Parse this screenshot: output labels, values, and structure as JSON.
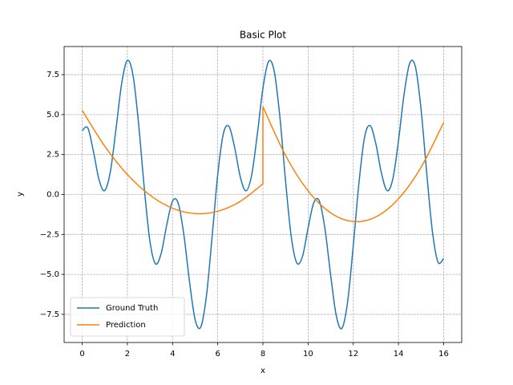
{
  "chart_data": {
    "type": "line",
    "title": "Basic Plot",
    "x_label": "x",
    "y_label": "y",
    "xlim": [
      -0.8,
      16.8
    ],
    "ylim": [
      -9.26,
      9.26
    ],
    "xticks": [
      0,
      2,
      4,
      6,
      8,
      10,
      12,
      14,
      16
    ],
    "yticks": [
      {
        "value": -7.5,
        "label": "−7.5"
      },
      {
        "value": -5,
        "label": "−5.0"
      },
      {
        "value": -2.5,
        "label": "−2.5"
      },
      {
        "value": 0,
        "label": "0.0"
      },
      {
        "value": 2.5,
        "label": "2.5"
      },
      {
        "value": 5,
        "label": "5.0"
      },
      {
        "value": 7.5,
        "label": "7.5"
      }
    ],
    "grid": true,
    "legend": "lower left",
    "series": [
      {
        "name": "Ground Truth",
        "color": "#1f77b4",
        "x": [
          0,
          0.25,
          0.5,
          0.75,
          1,
          1.25,
          1.5,
          1.75,
          2,
          2.25,
          2.5,
          2.75,
          3,
          3.25,
          3.5,
          3.75,
          4,
          4.25,
          4.5,
          4.75,
          5,
          5.25,
          5.5,
          5.75,
          6,
          6.25,
          6.5,
          6.75,
          7,
          7.25,
          7.5,
          7.75,
          8,
          8.25,
          8.5,
          8.75,
          9,
          9.25,
          9.5,
          9.75,
          10,
          10.25,
          10.5,
          10.75,
          11,
          11.25,
          11.5,
          11.75,
          12,
          12.25,
          12.5,
          12.75,
          13,
          13.25,
          13.5,
          13.75,
          14,
          14.25,
          14.5,
          14.75,
          15,
          15.25,
          15.5,
          15.75,
          16
        ],
        "values": [
          4.0,
          4.16,
          2.68,
          0.9,
          0.25,
          1.46,
          4.14,
          6.97,
          8.39,
          7.46,
          4.38,
          0.37,
          -2.94,
          -4.34,
          -3.66,
          -1.85,
          -0.41,
          -0.54,
          -2.51,
          -5.45,
          -7.83,
          -8.29,
          -6.34,
          -2.66,
          1.24,
          3.81,
          4.26,
          2.93,
          1.09,
          0.23,
          1.2,
          3.74,
          6.64,
          8.33,
          7.72,
          4.87,
          0.89,
          -2.6,
          -4.28,
          -3.88,
          -2.1,
          -0.52,
          -0.41,
          -2.18,
          -5.06,
          -7.6,
          -8.37,
          -6.71,
          -3.2,
          0.7,
          3.59,
          4.31,
          3.17,
          1.32,
          0.24,
          0.97,
          3.35,
          6.28,
          8.22,
          8.0,
          5.35,
          1.37,
          -2.28,
          -4.23,
          -4.0
        ]
      },
      {
        "name": "Prediction",
        "color": "#ff7f0e",
        "x": [
          0,
          1,
          2,
          3,
          4,
          5,
          6,
          7,
          8,
          8,
          9,
          10,
          11,
          12,
          13,
          14,
          15,
          16
        ],
        "values": [
          5.26,
          3.02,
          1.25,
          -0.04,
          -0.86,
          -1.19,
          -1.05,
          -0.43,
          0.67,
          5.5,
          2.45,
          0.23,
          -1.15,
          -1.69,
          -1.4,
          -0.27,
          1.7,
          4.5
        ]
      }
    ]
  }
}
